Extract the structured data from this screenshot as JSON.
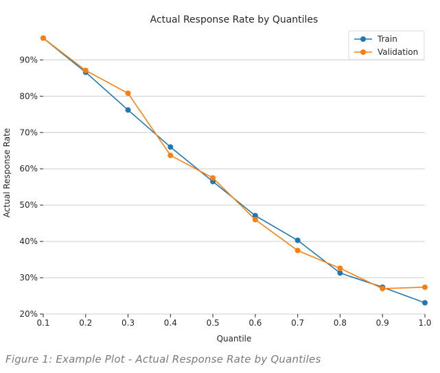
{
  "chart_data": {
    "type": "line",
    "title": "Actual Response Rate by Quantiles",
    "xlabel": "Quantile",
    "ylabel": "Actual Response Rate",
    "x": [
      0.1,
      0.2,
      0.3,
      0.4,
      0.5,
      0.6,
      0.7,
      0.8,
      0.9,
      1.0
    ],
    "x_ticks": [
      "0.1",
      "0.2",
      "0.3",
      "0.4",
      "0.5",
      "0.6",
      "0.7",
      "0.8",
      "0.9",
      "1.0"
    ],
    "y_ticks": [
      {
        "value": 0.2,
        "label": "20%"
      },
      {
        "value": 0.3,
        "label": "30%"
      },
      {
        "value": 0.4,
        "label": "40%"
      },
      {
        "value": 0.5,
        "label": "50%"
      },
      {
        "value": 0.6,
        "label": "60%"
      },
      {
        "value": 0.7,
        "label": "70%"
      },
      {
        "value": 0.8,
        "label": "80%"
      },
      {
        "value": 0.9,
        "label": "90%"
      }
    ],
    "xlim": [
      0.1,
      1.0
    ],
    "ylim": [
      0.2,
      0.98
    ],
    "grid": "horizontal",
    "legend_position": "top-right",
    "series": [
      {
        "name": "Train",
        "color": "#1f77b4",
        "values": [
          0.96,
          0.866,
          0.762,
          0.66,
          0.565,
          0.471,
          0.403,
          0.313,
          0.274,
          0.231
        ]
      },
      {
        "name": "Validation",
        "color": "#ff7f0e",
        "values": [
          0.96,
          0.871,
          0.808,
          0.637,
          0.575,
          0.46,
          0.375,
          0.326,
          0.27,
          0.274
        ]
      }
    ]
  },
  "caption": "Figure 1: Example Plot - Actual Response Rate by Quantiles"
}
